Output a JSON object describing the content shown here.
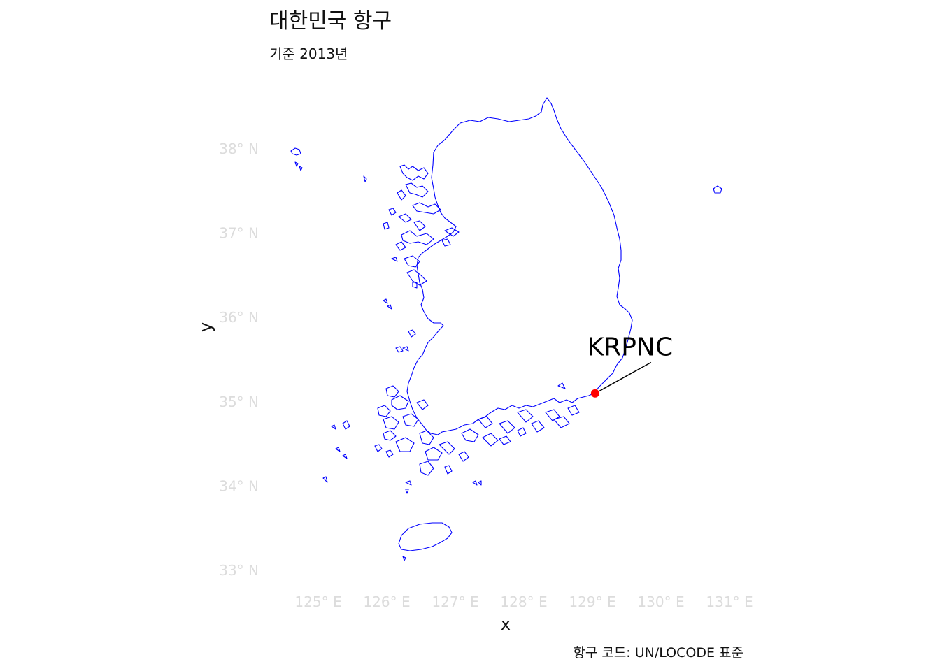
{
  "title": "대한민국 항구",
  "subtitle": "기준 2013년",
  "caption": "항구 코드: UN/LOCODE 표준",
  "x_axis_title": "x",
  "y_axis_title": "y",
  "x_ticks": [
    {
      "value": 125,
      "label": "125° E"
    },
    {
      "value": 126,
      "label": "126° E"
    },
    {
      "value": 127,
      "label": "127° E"
    },
    {
      "value": 128,
      "label": "128° E"
    },
    {
      "value": 129,
      "label": "129° E"
    },
    {
      "value": 130,
      "label": "130° E"
    },
    {
      "value": 131,
      "label": "131° E"
    }
  ],
  "y_ticks": [
    {
      "value": 38,
      "label": "38° N"
    },
    {
      "value": 37,
      "label": "37° N"
    },
    {
      "value": 36,
      "label": "36° N"
    },
    {
      "value": 35,
      "label": "35° N"
    },
    {
      "value": 34,
      "label": "34° N"
    }
  ],
  "y_ticks_extra": [
    {
      "value": 33,
      "label": "33° N"
    }
  ],
  "xlim": [
    124.5,
    131.5
  ],
  "ylim": [
    32.7,
    38.8
  ],
  "colors": {
    "coastline": "#0000ff",
    "port_point": "#ff0000",
    "tick_text": "#dcdcdc",
    "label_text": "#000000"
  },
  "ports": [
    {
      "code": "KRPNC",
      "lon": 129.04,
      "lat": 35.1,
      "label_lon": 129.55,
      "label_lat": 35.55
    }
  ]
}
